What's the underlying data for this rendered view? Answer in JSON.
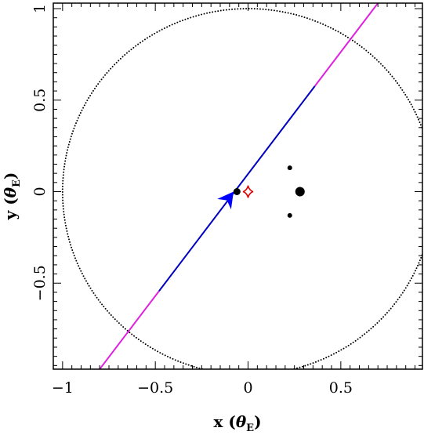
{
  "chart_data": {
    "type": "scatter",
    "xlabel": "x",
    "xlabel_unit": "θ",
    "xlabel_sub": "E",
    "ylabel": "y",
    "ylabel_unit": "θ",
    "ylabel_sub": "E",
    "xlim": [
      -1.05,
      0.94
    ],
    "ylim": [
      -0.97,
      1.03
    ],
    "xticks": [
      {
        "value": -1,
        "label": "−1"
      },
      {
        "value": -0.5,
        "label": "−0.5"
      },
      {
        "value": 0,
        "label": "0"
      },
      {
        "value": 0.5,
        "label": "0.5"
      }
    ],
    "yticks": [
      {
        "value": -0.5,
        "label": "−0.5"
      },
      {
        "value": 0,
        "label": "0"
      },
      {
        "value": 0.5,
        "label": "0.5"
      },
      {
        "value": 1,
        "label": "1"
      }
    ],
    "grid": false,
    "einstein_ring": {
      "cx": 0,
      "cy": 0,
      "r": 1,
      "style": "dotted",
      "color": "#000000"
    },
    "source_trajectory": {
      "start": [
        -0.8,
        -0.97
      ],
      "end": [
        0.7,
        1.03
      ],
      "inside_segment": [
        -0.48,
        0.36
      ],
      "outer_color": "#e020e0",
      "inner_color": "#0000c0"
    },
    "lens_masses": [
      {
        "x": 0.28,
        "y": 0.0,
        "size": "large"
      },
      {
        "x": 0.225,
        "y": 0.13,
        "size": "small"
      },
      {
        "x": 0.225,
        "y": -0.13,
        "size": "small"
      },
      {
        "x": -0.06,
        "y": 0.0,
        "size": "medium"
      }
    ],
    "central_caustic": {
      "x": 0.0,
      "y": 0.0,
      "w": 0.028,
      "h": 0.034,
      "color": "#e00000"
    },
    "source_arrow": {
      "x": -0.078,
      "y": 0.0,
      "angle_deg": 53,
      "color": "#0000ff"
    },
    "colors": {
      "axes": "#000000",
      "mass_points": "#000000"
    }
  }
}
